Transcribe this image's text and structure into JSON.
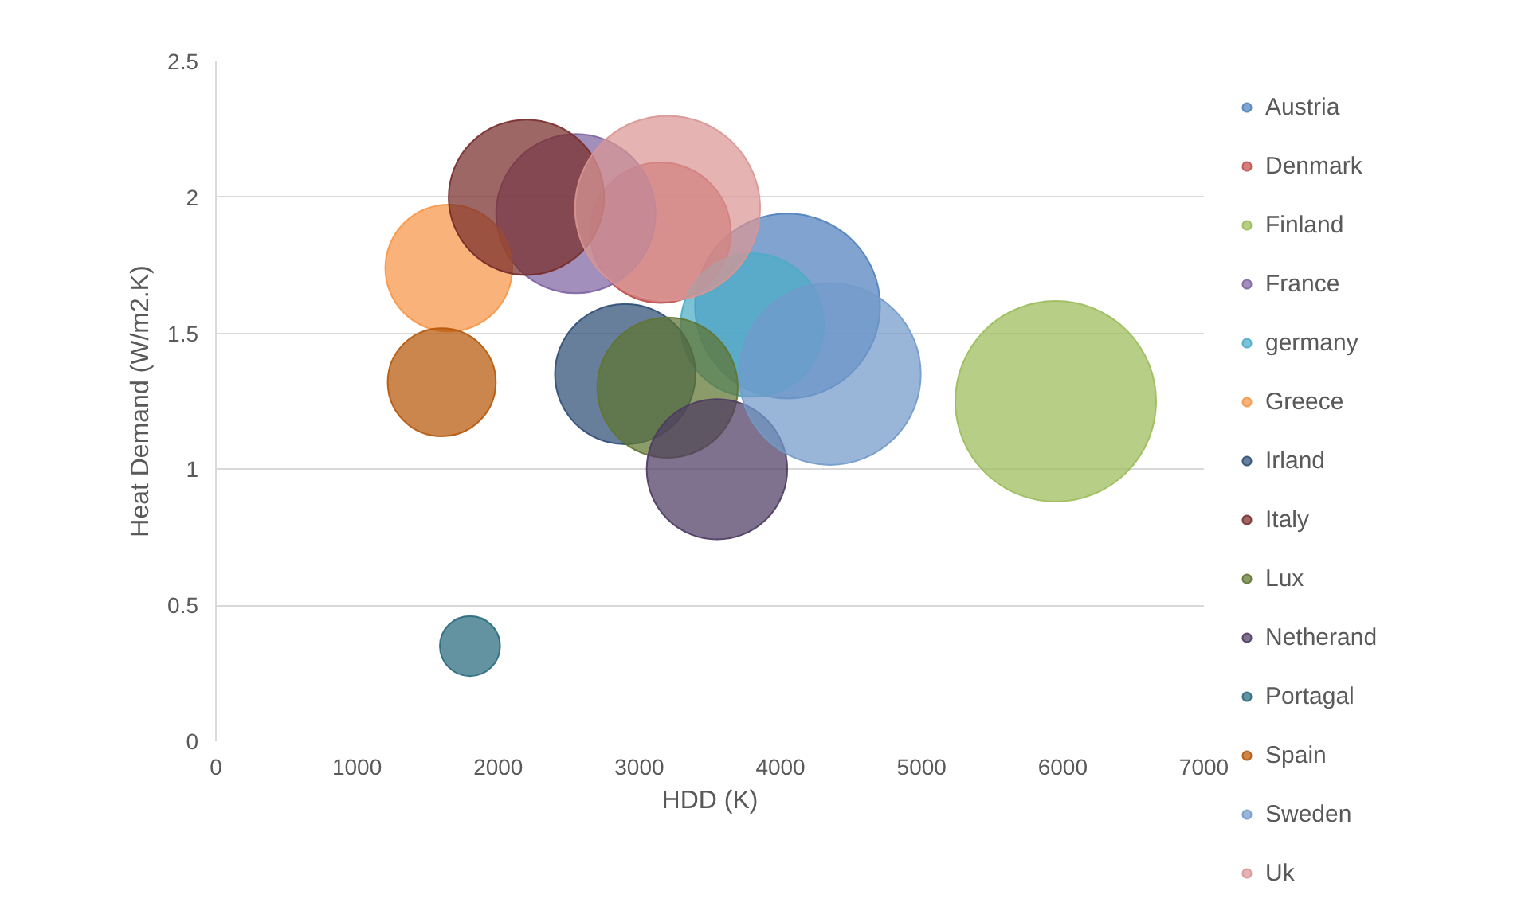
{
  "chart_data": {
    "type": "bubble",
    "xlabel": "HDD (K)",
    "ylabel": "Heat Demand (W/m2.K)",
    "xlim": [
      0,
      7000
    ],
    "xticks": [
      0,
      1000,
      2000,
      3000,
      4000,
      5000,
      6000,
      7000
    ],
    "ylim": [
      0,
      2.5
    ],
    "yticks": [
      0,
      0.5,
      1,
      1.5,
      2,
      2.5
    ],
    "grid": "y",
    "legend": "right",
    "marker": "circle",
    "series": [
      {
        "name": "Austria",
        "color": "#4f81bd",
        "x": [
          4050
        ],
        "values": [
          1.6
        ],
        "sizes": [
          0.85
        ]
      },
      {
        "name": "Denmark",
        "color": "#c0504d",
        "x": [
          3150
        ],
        "values": [
          1.87
        ],
        "sizes": [
          0.49
        ]
      },
      {
        "name": "Finland",
        "color": "#9bbb59",
        "x": [
          5950
        ],
        "values": [
          1.25
        ],
        "sizes": [
          1
        ]
      },
      {
        "name": "France",
        "color": "#8064a2",
        "x": [
          2550
        ],
        "values": [
          1.94
        ],
        "sizes": [
          0.63
        ]
      },
      {
        "name": "germany",
        "color": "#4bacc6",
        "x": [
          3800
        ],
        "values": [
          1.53
        ],
        "sizes": [
          0.51
        ]
      },
      {
        "name": "Greece",
        "color": "#f79646",
        "x": [
          1650
        ],
        "values": [
          1.74
        ],
        "sizes": [
          0.4
        ]
      },
      {
        "name": "Irland",
        "color": "#2c4d75",
        "x": [
          2900
        ],
        "values": [
          1.35
        ],
        "sizes": [
          0.49
        ]
      },
      {
        "name": "Italy",
        "color": "#772c2a",
        "x": [
          2200
        ],
        "values": [
          2.0
        ],
        "sizes": [
          0.6
        ]
      },
      {
        "name": "Lux",
        "color": "#5f7530",
        "x": [
          3200
        ],
        "values": [
          1.3
        ],
        "sizes": [
          0.49
        ]
      },
      {
        "name": "Netherand",
        "color": "#4d3b62",
        "x": [
          3550
        ],
        "values": [
          1.0
        ],
        "sizes": [
          0.49
        ]
      },
      {
        "name": "Portagal",
        "color": "#276a7c",
        "x": [
          1800
        ],
        "values": [
          0.35
        ],
        "sizes": [
          0.09
        ]
      },
      {
        "name": "Spain",
        "color": "#b65708",
        "x": [
          1600
        ],
        "values": [
          1.32
        ],
        "sizes": [
          0.29
        ]
      },
      {
        "name": "Sweden",
        "color": "#729aca",
        "x": [
          4350
        ],
        "values": [
          1.35
        ],
        "sizes": [
          0.82
        ]
      },
      {
        "name": "Uk",
        "color": "#d99694",
        "x": [
          3200
        ],
        "values": [
          1.96
        ],
        "sizes": [
          0.85
        ]
      }
    ]
  }
}
